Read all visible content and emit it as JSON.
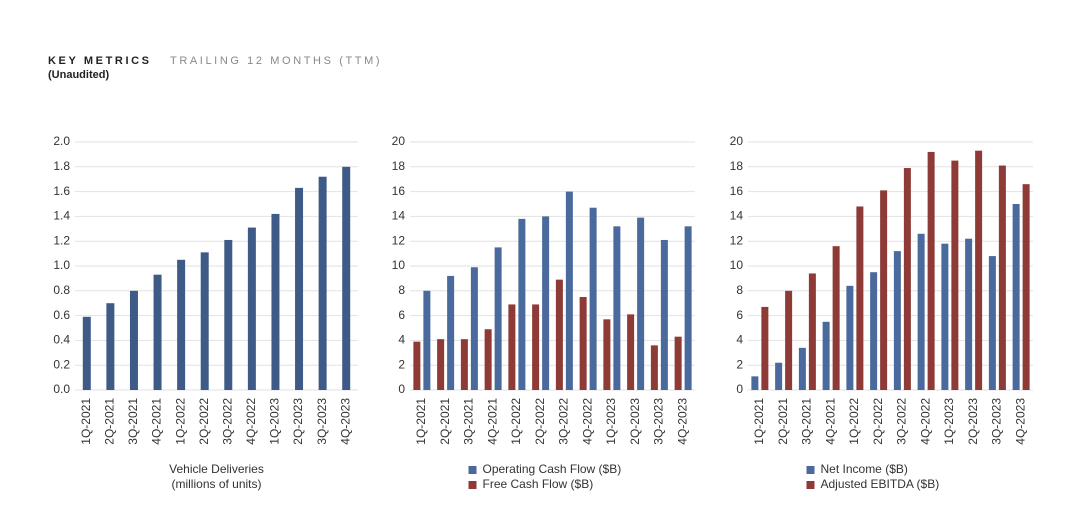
{
  "header": {
    "title": "KEY METRICS",
    "subtitle": "TRAILING 12 MONTHS (TTM)",
    "note": "(Unaudited)"
  },
  "chart_data": [
    {
      "type": "bar",
      "x_label": [
        "Vehicle Deliveries",
        "(millions of units)"
      ],
      "categories": [
        "1Q-2021",
        "2Q-2021",
        "3Q-2021",
        "4Q-2021",
        "1Q-2022",
        "2Q-2022",
        "3Q-2022",
        "4Q-2022",
        "1Q-2023",
        "2Q-2023",
        "3Q-2023",
        "4Q-2023"
      ],
      "series": [
        {
          "name": null,
          "color": "#3e5b88",
          "values": [
            0.59,
            0.7,
            0.8,
            0.93,
            1.05,
            1.11,
            1.21,
            1.31,
            1.42,
            1.63,
            1.72,
            1.8
          ]
        }
      ],
      "ylim": [
        0,
        2
      ],
      "yticks": [
        {
          "value": 0,
          "label": "0.0"
        },
        0.2,
        0.4,
        0.6,
        0.8,
        {
          "value": 1,
          "label": "1.0"
        },
        1.2,
        1.4,
        1.6,
        1.8,
        {
          "value": 2,
          "label": "2.0"
        }
      ],
      "grid": true
    },
    {
      "type": "bar",
      "categories": [
        "1Q-2021",
        "2Q-2021",
        "3Q-2021",
        "4Q-2021",
        "1Q-2022",
        "2Q-2022",
        "3Q-2022",
        "4Q-2022",
        "1Q-2023",
        "2Q-2023",
        "3Q-2023",
        "4Q-2023"
      ],
      "series": [
        {
          "name": "Operating Cash Flow ($B)",
          "color": "#4a6a9d",
          "values": [
            8.0,
            9.2,
            9.9,
            11.5,
            13.8,
            14.0,
            16.0,
            14.7,
            13.2,
            13.9,
            12.1,
            13.2
          ]
        },
        {
          "name": "Free Cash Flow ($B)",
          "color": "#8e3b38",
          "values": [
            3.9,
            4.1,
            4.1,
            4.9,
            6.9,
            6.9,
            8.9,
            7.5,
            5.7,
            6.1,
            3.6,
            4.3
          ]
        }
      ],
      "ylim": [
        0,
        20
      ],
      "yticks": [
        0,
        2,
        4,
        6,
        8,
        10,
        12,
        14,
        16,
        18,
        20
      ],
      "grid": true
    },
    {
      "type": "bar",
      "categories": [
        "1Q-2021",
        "2Q-2021",
        "3Q-2021",
        "4Q-2021",
        "1Q-2022",
        "2Q-2022",
        "3Q-2022",
        "4Q-2022",
        "1Q-2023",
        "2Q-2023",
        "3Q-2023",
        "4Q-2023"
      ],
      "series": [
        {
          "name": "Net Income ($B)",
          "color": "#4a6a9d",
          "values": [
            1.1,
            2.2,
            3.4,
            5.5,
            8.4,
            9.5,
            11.2,
            12.6,
            11.8,
            12.2,
            10.8,
            15.0
          ]
        },
        {
          "name": "Adjusted EBITDA ($B)",
          "color": "#8e3b38",
          "values": [
            6.7,
            8.0,
            9.4,
            11.6,
            14.8,
            16.1,
            17.9,
            19.2,
            18.5,
            19.3,
            18.1,
            16.6
          ]
        }
      ],
      "ylim": [
        0,
        20
      ],
      "yticks": [
        0,
        2,
        4,
        6,
        8,
        10,
        12,
        14,
        16,
        18,
        20
      ],
      "grid": true
    }
  ]
}
